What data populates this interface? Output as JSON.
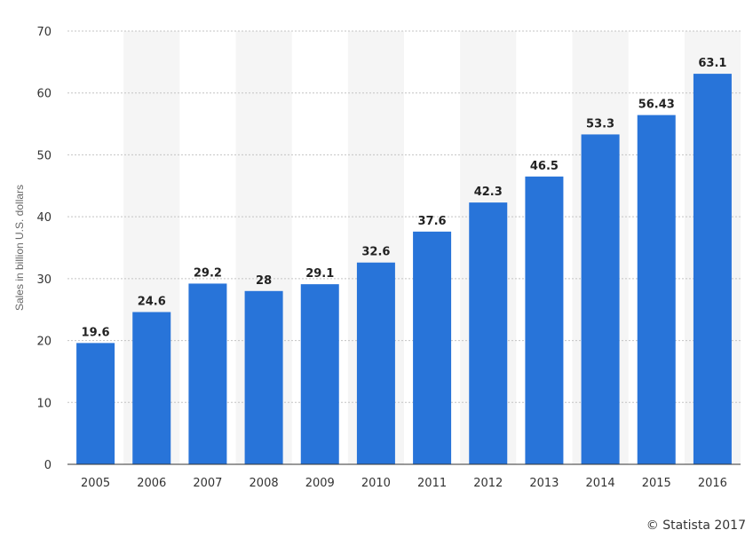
{
  "chart_data": {
    "type": "bar",
    "categories": [
      "2005",
      "2006",
      "2007",
      "2008",
      "2009",
      "2010",
      "2011",
      "2012",
      "2013",
      "2014",
      "2015",
      "2016"
    ],
    "values": [
      19.6,
      24.6,
      29.2,
      28,
      29.1,
      32.6,
      37.6,
      42.3,
      46.5,
      53.3,
      56.43,
      63.1
    ],
    "value_labels": [
      "19.6",
      "24.6",
      "29.2",
      "28",
      "29.1",
      "32.6",
      "37.6",
      "42.3",
      "46.5",
      "53.3",
      "56.43",
      "63.1"
    ],
    "ylabel": "Sales in billion U.S. dollars",
    "xlabel": "",
    "ylim": [
      0,
      70
    ],
    "yticks": [
      "0",
      "10",
      "20",
      "30",
      "40",
      "50",
      "60",
      "70"
    ],
    "grid": "horizontal dotted",
    "bar_color": "#2874d9",
    "band_color": "#f5f5f5"
  },
  "credit": "© Statista 2017"
}
